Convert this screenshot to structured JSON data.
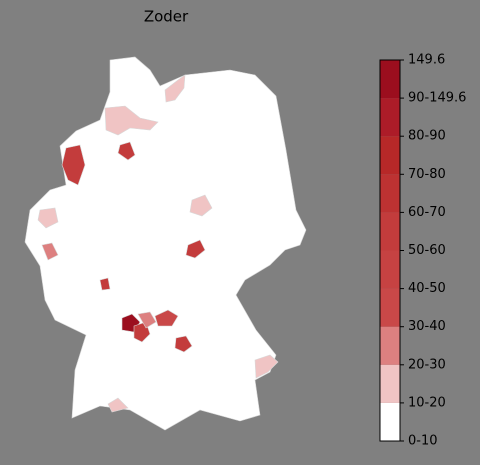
{
  "title": "Zoder",
  "legend": {
    "labels": [
      "0-10",
      "10-20",
      "20-30",
      "30-40",
      "40-50",
      "50-60",
      "60-70",
      "70-80",
      "80-90",
      "90-149.6",
      "149.6"
    ],
    "colors": [
      "#ffffff",
      "#f0c4c4",
      "#dd8080",
      "#c94848",
      "#c64242",
      "#c33c3c",
      "#bd3232",
      "#b72828",
      "#ac1c28",
      "#9b0e1e"
    ]
  }
}
